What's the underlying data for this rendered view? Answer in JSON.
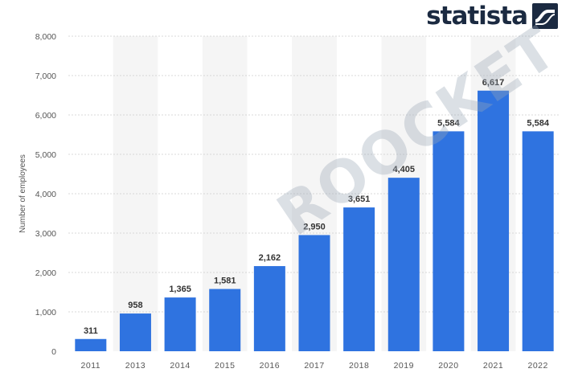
{
  "brand": {
    "name": "statista",
    "watermark": "ROOCKET"
  },
  "colors": {
    "bar": "#2f73e0",
    "band": "#f5f5f5",
    "grid": "#d8d8d8",
    "label": "#333333",
    "axis_text": "#555555"
  },
  "chart_data": {
    "type": "bar",
    "title": "",
    "xlabel": "",
    "ylabel": "Number of employees",
    "categories": [
      "2011",
      "2013",
      "2014",
      "2015",
      "2016",
      "2017",
      "2018",
      "2019",
      "2020",
      "2021",
      "2022"
    ],
    "values": [
      311,
      958,
      1365,
      1581,
      2162,
      2950,
      3651,
      4405,
      5584,
      6617,
      5584
    ],
    "data_labels": [
      "311",
      "958",
      "1,365",
      "1,581",
      "2,162",
      "2,950",
      "3,651",
      "4,405",
      "5,584",
      "6,617",
      "5,584"
    ],
    "ylim": [
      0,
      8000
    ],
    "yticks": [
      0,
      1000,
      2000,
      3000,
      4000,
      5000,
      6000,
      7000,
      8000
    ],
    "ytick_labels": [
      "0",
      "1,000",
      "2,000",
      "3,000",
      "4,000",
      "5,000",
      "6,000",
      "7,000",
      "8,000"
    ],
    "grid": true,
    "legend": "none"
  }
}
